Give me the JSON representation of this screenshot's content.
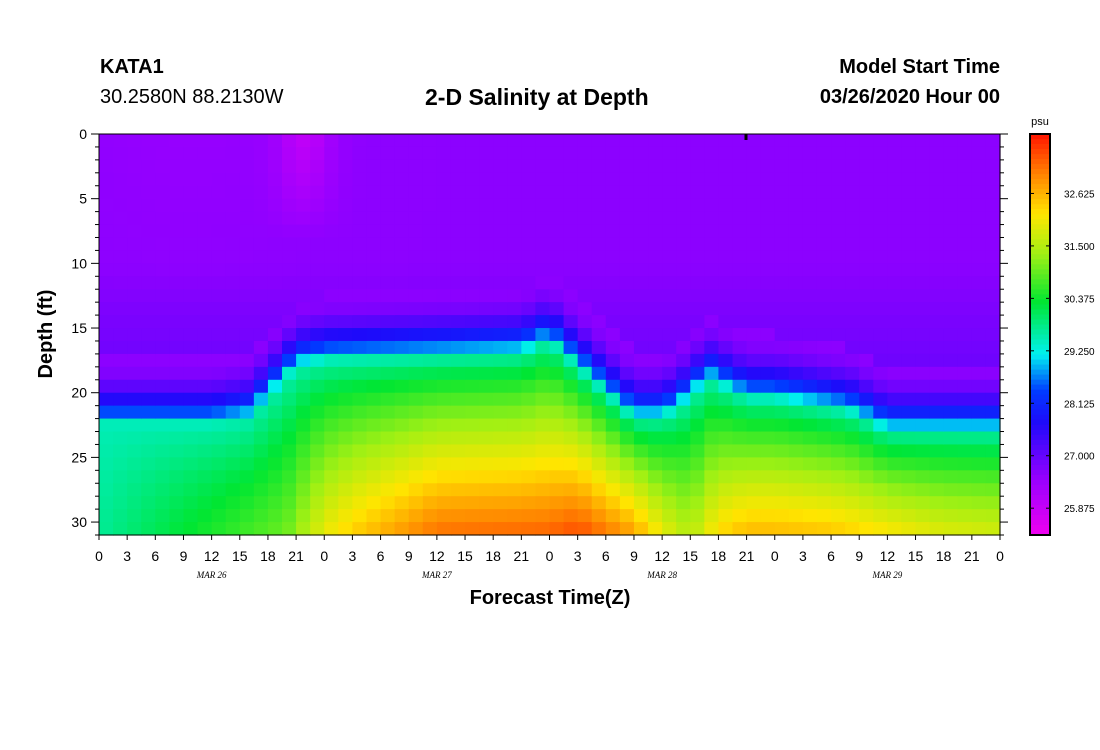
{
  "header": {
    "station": "KATA1",
    "coordinates": "30.2580N 88.2130W",
    "title": "2-D Salinity at Depth",
    "start_label": "Model Start Time",
    "start_time": "03/26/2020 Hour 00"
  },
  "chart_data": {
    "type": "heatmap",
    "title": "2-D Salinity at Depth",
    "xlabel": "Forecast Time(Z)",
    "ylabel": "Depth (ft)",
    "x_hours": [
      0,
      96
    ],
    "ylim": [
      0,
      31
    ],
    "y_ticks": [
      0,
      5,
      10,
      15,
      20,
      25,
      30
    ],
    "x_tick_labels": [
      "0",
      "3",
      "6",
      "9",
      "12",
      "15",
      "18",
      "21",
      "0",
      "3",
      "6",
      "9",
      "12",
      "15",
      "18",
      "21",
      "0",
      "3",
      "6",
      "9",
      "12",
      "15",
      "18",
      "21",
      "0",
      "3",
      "6",
      "9",
      "12",
      "15",
      "18",
      "21",
      "0"
    ],
    "day_labels": [
      {
        "label": "MAR 26",
        "hour": 12
      },
      {
        "label": "MAR 27",
        "hour": 36
      },
      {
        "label": "MAR 28",
        "hour": 60
      },
      {
        "label": "MAR 29",
        "hour": 84
      }
    ],
    "colorbar": {
      "unit": "psu",
      "min": 25.3,
      "max": 33.9,
      "tick_values": [
        25.875,
        27.0,
        28.125,
        29.25,
        30.375,
        31.5,
        32.625
      ],
      "tick_labels": [
        "25.875",
        "27.000",
        "28.125",
        "29.250",
        "30.375",
        "31.500",
        "32.625"
      ]
    },
    "halocline_depth_ft": {
      "hours": [
        0,
        12,
        16,
        21,
        24,
        45,
        48,
        57,
        60,
        62,
        65,
        69,
        72,
        80,
        84,
        96
      ],
      "depth": [
        22.5,
        22.5,
        22,
        18,
        17.5,
        17,
        16,
        22,
        22,
        21,
        19,
        20.5,
        20.5,
        21.5,
        23,
        23
      ]
    },
    "high_salinity_core": {
      "hours": [
        0,
        20,
        24,
        27,
        36,
        48,
        51,
        57,
        60,
        63,
        66,
        69,
        72,
        78,
        82,
        90,
        96
      ],
      "psu_at_bottom": [
        29.7,
        31.0,
        32.0,
        32.4,
        33.2,
        33.3,
        33.5,
        32.8,
        32.0,
        31.5,
        32.3,
        32.6,
        32.6,
        32.5,
        32.3,
        31.9,
        31.8
      ]
    },
    "surface_low_salinity": [
      {
        "hour": 21.5,
        "half_width_hours": 3,
        "depth_extent_ft": 8,
        "psu": 25.6
      },
      {
        "hour": 10,
        "half_width_hours": 12,
        "depth_extent_ft": 13,
        "psu": 26.5
      }
    ]
  }
}
